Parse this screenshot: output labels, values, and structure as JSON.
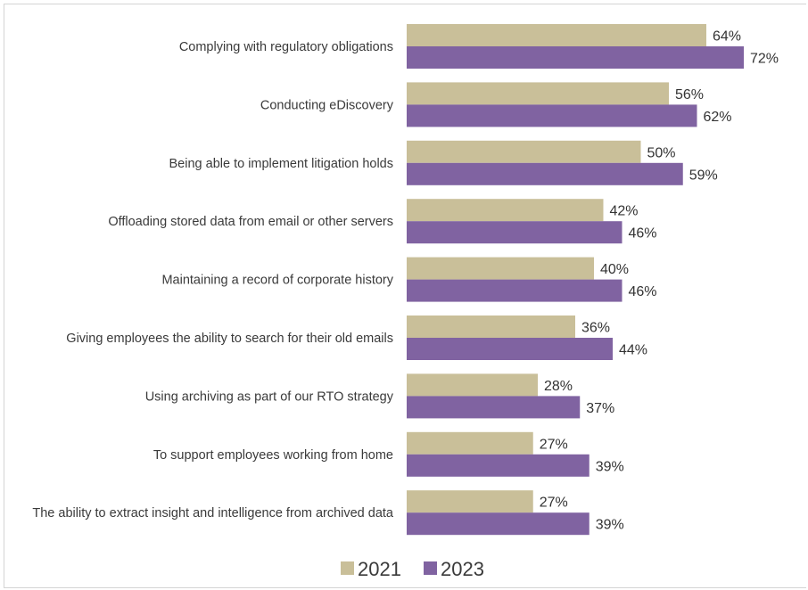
{
  "chart_data": {
    "type": "bar",
    "orientation": "horizontal",
    "categories": [
      "Complying with regulatory obligations",
      "Conducting eDiscovery",
      "Being able to implement litigation holds",
      "Offloading stored data from email or other servers",
      "Maintaining a record of corporate history",
      "Giving employees the ability to search for their old emails",
      "Using archiving as part of our RTO strategy",
      "To support employees working from home",
      "The ability to extract insight and intelligence from archived data"
    ],
    "series": [
      {
        "name": "2021",
        "color": "#c9bf99",
        "values": [
          64,
          56,
          50,
          42,
          40,
          36,
          28,
          27,
          27
        ],
        "labels": [
          "64%",
          "56%",
          "50%",
          "42%",
          "40%",
          "36%",
          "28%",
          "27%",
          "27%"
        ]
      },
      {
        "name": "2023",
        "color": "#8063a1",
        "values": [
          72,
          62,
          59,
          46,
          46,
          44,
          37,
          39,
          39
        ],
        "labels": [
          "72%",
          "62%",
          "59%",
          "46%",
          "46%",
          "44%",
          "37%",
          "39%",
          "39%"
        ]
      }
    ],
    "title": "",
    "xlabel": "",
    "ylabel": "",
    "xlim": [
      0,
      100
    ],
    "grid": false,
    "legend_position": "bottom"
  }
}
